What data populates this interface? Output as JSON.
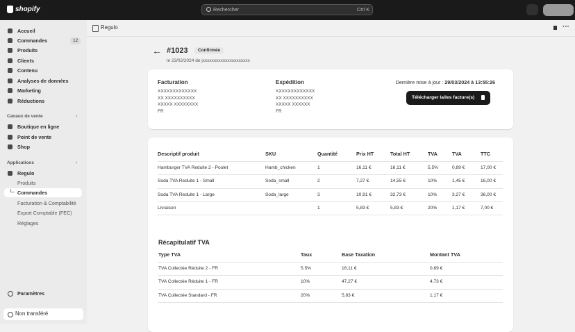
{
  "topbar": {
    "logo": "shopify",
    "search": "Rechercher",
    "shortcut": "Ctrl K"
  },
  "sidebar": {
    "main": [
      {
        "label": "Accueil"
      },
      {
        "label": "Commandes",
        "badge": 12
      },
      {
        "label": "Produits"
      },
      {
        "label": "Clients"
      },
      {
        "label": "Contenu"
      },
      {
        "label": "Analyses de données"
      },
      {
        "label": "Marketing"
      },
      {
        "label": "Réductions"
      }
    ],
    "sales_channels_title": "Canaux de vente",
    "sales_channels": [
      "Boutique en ligne",
      "Point de vente",
      "Shop"
    ],
    "apps_title": "Applications",
    "app": "Regulo",
    "app_pages": [
      {
        "label": "Produits"
      },
      {
        "label": "Commandes",
        "selected": true
      },
      {
        "label": "Facturation & Comptabilité"
      },
      {
        "label": "Export Comptable (FEC)"
      },
      {
        "label": "Réglages"
      }
    ],
    "settings": "Paramètres",
    "status": "Non transféré"
  },
  "app_header": {
    "title": "Regulo"
  },
  "order": {
    "number": "#1023",
    "status": "Confirmée",
    "date_line": "le 23/02/2024 de jxxxxxxxxxxxxxxxxxxxxx"
  },
  "billing": {
    "title": "Facturation",
    "lines": [
      "XXXXXXXXXXXXX",
      "XX XXXXXXXXXX",
      "XXXXX XXXXXXXX",
      "FR"
    ]
  },
  "shipping": {
    "title": "Expédition",
    "lines": [
      "XXXXXXXXXXXXX",
      "XX XXXXXXXXXX",
      "XXXXX XXXXXX",
      "FR"
    ]
  },
  "last_update": {
    "label": "Dernière mise à jour :",
    "value": "29/03/2024 à 13:55:26"
  },
  "download_button": "Télécharger la/les facture(s)",
  "products_table": {
    "headers": [
      "Descriptif produit",
      "SKU",
      "Quantité",
      "Prix HT",
      "Total HT",
      "TVA",
      "TVA",
      "TTC"
    ],
    "rows": [
      [
        "Hamburger TVA Reduite 2 - Poulet",
        "Hamb_chicken",
        "1",
        "16,11 €",
        "16,11 €",
        "5,5%",
        "0,89 €",
        "17,00 €"
      ],
      [
        "Soda TVA Reduite 1 - Small",
        "Soda_small",
        "2",
        "7,27 €",
        "14,55 €",
        "10%",
        "1,45 €",
        "16,00 €"
      ],
      [
        "Soda TVA Reduite 1 - Large",
        "Soda_large",
        "3",
        "10,91 €",
        "32,73 €",
        "10%",
        "3,27 €",
        "36,00 €"
      ],
      [
        "Livraison",
        "",
        "1",
        "5,83 €",
        "5,83 €",
        "20%",
        "1,17 €",
        "7,00 €"
      ]
    ]
  },
  "vat_summary": {
    "title": "Récapitulatif TVA",
    "headers": [
      "Type TVA",
      "Taux",
      "Base Taxation",
      "Montant TVA"
    ],
    "rows": [
      [
        "TVA Collectée Réduite 2 - FR",
        "5.5%",
        "16,11 €",
        "0,89 €"
      ],
      [
        "TVA Collectée Réduite 1 - FR",
        "10%",
        "47,27 €",
        "4,73 €"
      ],
      [
        "TVA Collectée Standard - FR",
        "20%",
        "5,83 €",
        "1,17 €"
      ]
    ]
  }
}
